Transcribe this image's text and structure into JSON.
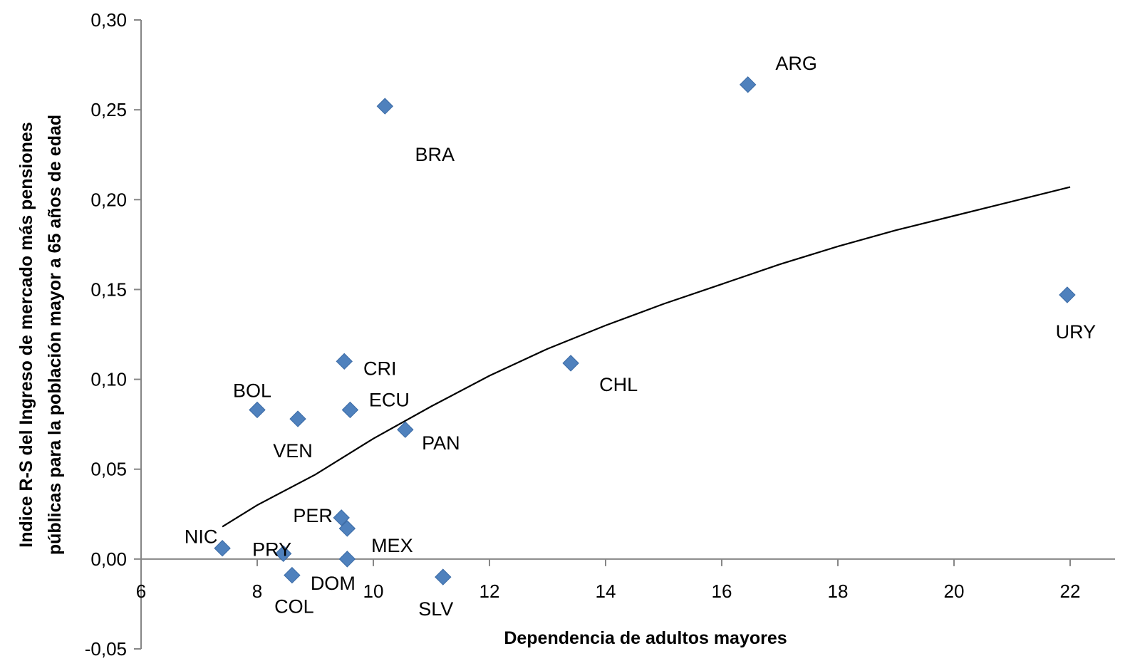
{
  "chart_data": {
    "type": "scatter",
    "xlabel": "Dependencia de adultos mayores",
    "ylabel_lines": [
      "Indice R-S del Ingreso de mercado más pensiones",
      "públicas para la población mayor a 65 años de edad"
    ],
    "xlim": [
      6,
      22
    ],
    "ylim": [
      -0.05,
      0.3
    ],
    "x_ticks": [
      6,
      8,
      10,
      12,
      14,
      16,
      18,
      20,
      22
    ],
    "x_tick_labels": [
      "6",
      "8",
      "10",
      "12",
      "14",
      "16",
      "18",
      "20",
      "22"
    ],
    "y_ticks": [
      -0.05,
      0,
      0.05,
      0.1,
      0.15,
      0.2,
      0.25,
      0.3
    ],
    "y_tick_labels": [
      "-0,05",
      "0,00",
      "0,05",
      "0,10",
      "0,15",
      "0,20",
      "0,25",
      "0,30"
    ],
    "grid": false,
    "legend": "none",
    "marker_color": "#4f81bd",
    "marker_shape": "diamond",
    "trend": {
      "type": "logarithmic",
      "x_range": [
        7.4,
        22.0
      ],
      "points": [
        [
          7.4,
          0.018
        ],
        [
          8,
          0.03
        ],
        [
          9,
          0.047
        ],
        [
          10,
          0.067
        ],
        [
          11,
          0.085
        ],
        [
          12,
          0.102
        ],
        [
          13,
          0.117
        ],
        [
          14,
          0.13
        ],
        [
          15,
          0.142
        ],
        [
          16,
          0.153
        ],
        [
          17,
          0.164
        ],
        [
          18,
          0.174
        ],
        [
          19,
          0.183
        ],
        [
          20,
          0.191
        ],
        [
          21,
          0.199
        ],
        [
          22,
          0.207
        ]
      ],
      "color": "#000000"
    },
    "points": [
      {
        "label": "ARG",
        "x": 16.45,
        "y": 0.264
      },
      {
        "label": "BRA",
        "x": 10.2,
        "y": 0.252
      },
      {
        "label": "URY",
        "x": 21.95,
        "y": 0.147
      },
      {
        "label": "CRI",
        "x": 9.5,
        "y": 0.11
      },
      {
        "label": "CHL",
        "x": 13.4,
        "y": 0.109
      },
      {
        "label": "BOL",
        "x": 8.0,
        "y": 0.083
      },
      {
        "label": "ECU",
        "x": 9.6,
        "y": 0.083
      },
      {
        "label": "VEN",
        "x": 8.7,
        "y": 0.078
      },
      {
        "label": "PAN",
        "x": 10.55,
        "y": 0.072
      },
      {
        "label": "PER",
        "x": 9.45,
        "y": 0.023
      },
      {
        "label": "MEX",
        "x": 9.55,
        "y": 0.017
      },
      {
        "label": "NIC",
        "x": 7.4,
        "y": 0.006
      },
      {
        "label": "PRY",
        "x": 8.45,
        "y": 0.003
      },
      {
        "label": "DOM",
        "x": 9.55,
        "y": 0.0
      },
      {
        "label": "COL",
        "x": 8.6,
        "y": -0.009
      },
      {
        "label": "SLV",
        "x": 11.2,
        "y": -0.01
      }
    ]
  }
}
